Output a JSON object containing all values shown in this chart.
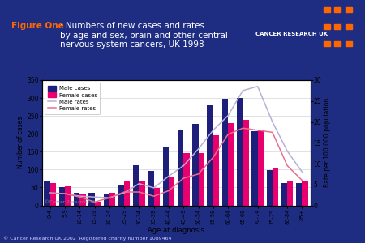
{
  "age_groups": [
    "0-4",
    "5-9",
    "10-14",
    "15-19",
    "20-24",
    "25-29",
    "30-34",
    "35-39",
    "40-44",
    "45-49",
    "50-54",
    "55-59",
    "60-64",
    "65-69",
    "70-74",
    "75-79",
    "80-84",
    "85+"
  ],
  "male_cases": [
    68,
    52,
    35,
    35,
    33,
    58,
    113,
    97,
    165,
    210,
    228,
    280,
    298,
    300,
    207,
    98,
    63,
    62
  ],
  "female_cases": [
    63,
    53,
    32,
    10,
    35,
    70,
    70,
    48,
    80,
    145,
    145,
    195,
    230,
    240,
    210,
    105,
    68,
    70
  ],
  "male_rates": [
    3.0,
    2.8,
    2.2,
    2.0,
    1.8,
    3.0,
    5.2,
    4.2,
    7.0,
    9.5,
    13.5,
    18.0,
    21.5,
    27.5,
    28.5,
    20.0,
    13.0,
    8.0
  ],
  "female_rates": [
    2.8,
    2.8,
    2.0,
    0.8,
    1.8,
    3.2,
    3.2,
    2.2,
    3.5,
    6.5,
    7.5,
    11.5,
    17.0,
    18.5,
    18.0,
    17.5,
    9.5,
    6.0
  ],
  "male_bar_color": "#1e1f7a",
  "female_bar_color": "#e8006e",
  "male_rate_color": "#b8b0d8",
  "female_rate_color": "#e87090",
  "bg_color": "#1e2d82",
  "plot_bg_color": "#ffffff",
  "title_figure": "Figure One",
  "title_colon": ":",
  "title_rest": " Numbers of new cases and rates\nby age and sex, brain and other central\nnervous system cancers, UK 1998",
  "xlabel": "Age at diagnosis",
  "ylabel_left": "Number of cases",
  "ylabel_right": "Rate per 100,000 population",
  "ylim_left": [
    0,
    350
  ],
  "ylim_right": [
    0,
    30
  ],
  "yticks_left": [
    0,
    50,
    100,
    150,
    200,
    250,
    300,
    350
  ],
  "yticks_right": [
    0,
    5,
    10,
    15,
    20,
    25,
    30
  ],
  "footer": "© Cancer Research UK 2002  Registered charity number 1089464",
  "copyright_chart": "©Cancer Research UK",
  "legend_labels": [
    "Male cases",
    "Female cases",
    "Male rates",
    "Female rates"
  ],
  "logo_text": "CANCER RESEARCH UK",
  "separator_color": "#6688cc",
  "title_orange": "#ff6600",
  "title_white": "#ffffff"
}
